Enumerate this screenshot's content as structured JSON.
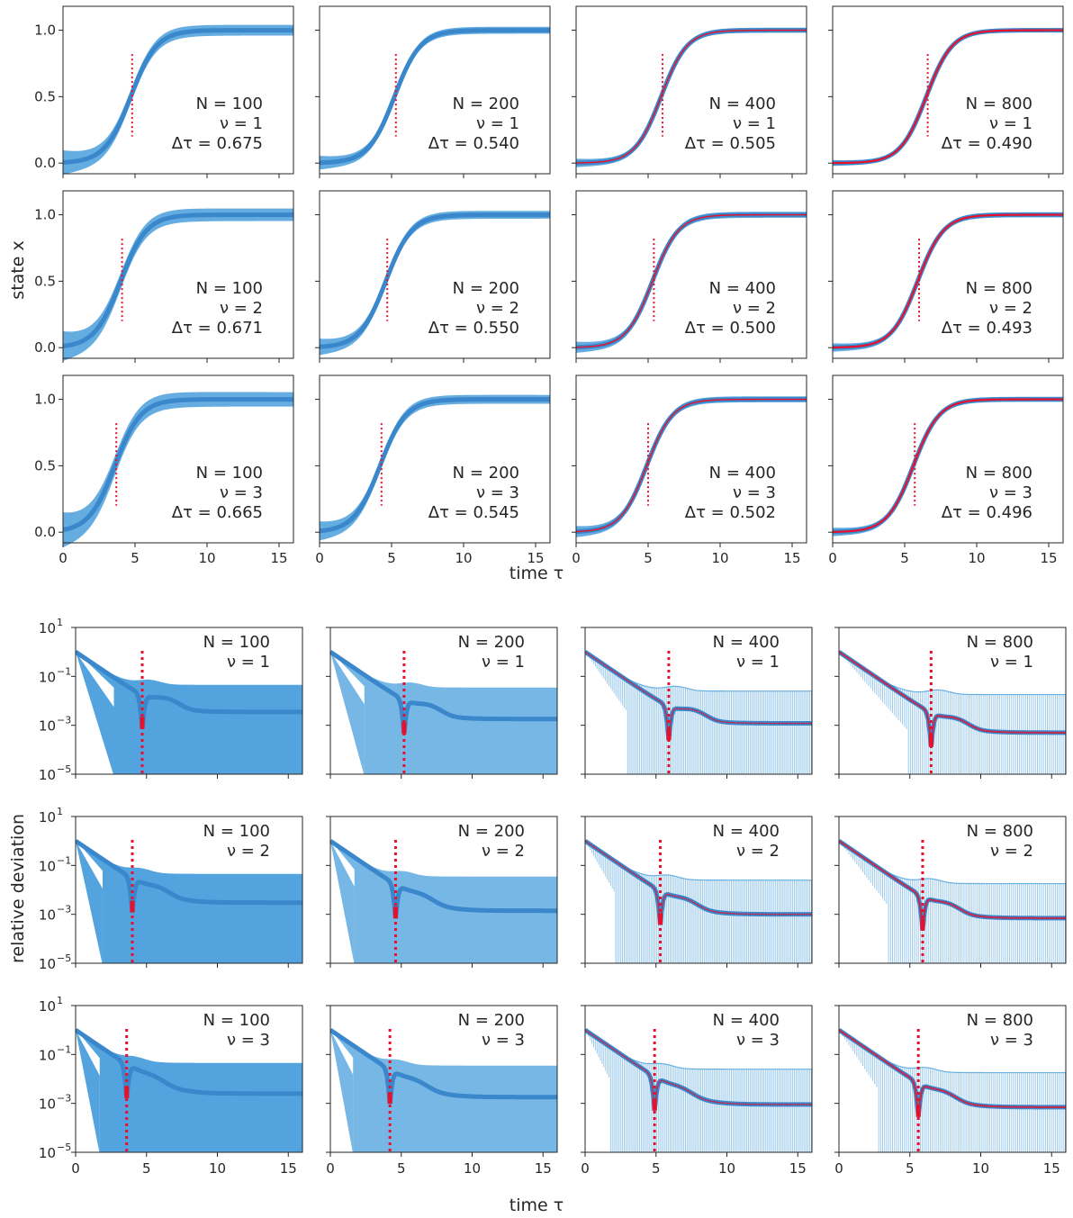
{
  "figure": {
    "top": {
      "xlabel": "time    τ",
      "ylabel": "state    x"
    },
    "bottom": {
      "xlabel": "time    τ",
      "ylabel": "relative deviation"
    }
  },
  "chart_data": [
    {
      "type": "line",
      "panel_group": "state",
      "description_axes": {
        "xlim": [
          0,
          16
        ],
        "ylim": [
          -0.08,
          1.18
        ],
        "xticks": [
          0,
          5,
          10,
          15
        ],
        "yticks": [
          0.0,
          0.5,
          1.0
        ],
        "xtick_labels": [
          "0",
          "5",
          "10",
          "15"
        ],
        "ytick_labels": [
          "0.0",
          "0.5",
          "1.0"
        ],
        "grid": false
      },
      "curve": {
        "model": "logistic",
        "x0": 0.0
      },
      "rows": [
        {
          "nu": "1",
          "nu_label": "ν = 1",
          "panels": [
            {
              "N": "100",
              "N_label": "N = 100",
              "dtau_label": "Δτ = 0.675",
              "midpoint": 4.7,
              "band": 0.08
            },
            {
              "N": "200",
              "N_label": "N = 200",
              "dtau_label": "Δτ = 0.540",
              "midpoint": 5.2,
              "band": 0.04
            },
            {
              "N": "400",
              "N_label": "N = 400",
              "dtau_label": "Δτ = 0.505",
              "midpoint": 5.9,
              "band": 0.02
            },
            {
              "N": "800",
              "N_label": "N = 800",
              "dtau_label": "Δτ = 0.490",
              "midpoint": 6.5,
              "band": 0.01
            }
          ]
        },
        {
          "nu": "2",
          "nu_label": "ν = 2",
          "panels": [
            {
              "N": "100",
              "N_label": "N = 100",
              "dtau_label": "Δτ = 0.671",
              "midpoint": 4.0,
              "band": 0.1
            },
            {
              "N": "200",
              "N_label": "N = 200",
              "dtau_label": "Δτ = 0.550",
              "midpoint": 4.6,
              "band": 0.05
            },
            {
              "N": "400",
              "N_label": "N = 400",
              "dtau_label": "Δτ = 0.500",
              "midpoint": 5.3,
              "band": 0.03
            },
            {
              "N": "800",
              "N_label": "N = 800",
              "dtau_label": "Δτ = 0.493",
              "midpoint": 5.9,
              "band": 0.02
            }
          ]
        },
        {
          "nu": "3",
          "nu_label": "ν = 3",
          "panels": [
            {
              "N": "100",
              "N_label": "N = 100",
              "dtau_label": "Δτ = 0.665",
              "midpoint": 3.6,
              "band": 0.12
            },
            {
              "N": "200",
              "N_label": "N = 200",
              "dtau_label": "Δτ = 0.545",
              "midpoint": 4.2,
              "band": 0.06
            },
            {
              "N": "400",
              "N_label": "N = 400",
              "dtau_label": "Δτ = 0.502",
              "midpoint": 4.9,
              "band": 0.03
            },
            {
              "N": "800",
              "N_label": "N = 800",
              "dtau_label": "Δτ = 0.496",
              "midpoint": 5.6,
              "band": 0.02
            }
          ]
        }
      ],
      "series_colors": {
        "mean": "#3a87cc",
        "band": "#4a9fdc",
        "reference": "#e8102a",
        "midpoint_line": "#e8102a"
      }
    },
    {
      "type": "line",
      "panel_group": "relative_deviation",
      "description_axes": {
        "xlim": [
          0,
          16
        ],
        "yscale": "log",
        "ylim": [
          1e-05,
          10
        ],
        "xticks": [
          0,
          5,
          10,
          15
        ],
        "yticks": [
          1e-05,
          0.001,
          0.1,
          10
        ],
        "xtick_labels": [
          "0",
          "5",
          "10",
          "15"
        ],
        "ytick_labels": [
          {
            "base": "10",
            "exp": "−5"
          },
          {
            "base": "10",
            "exp": "−3"
          },
          {
            "base": "10",
            "exp": "−1"
          },
          {
            "base": "10",
            "exp": "1"
          }
        ],
        "grid": false
      },
      "rows": [
        {
          "nu": "1",
          "nu_label": "ν = 1",
          "panels": [
            {
              "N": "100",
              "N_label": "N = 100",
              "dip": 4.7,
              "plateau": 0.0035,
              "upper": 0.045,
              "cutoff": 2.7
            },
            {
              "N": "200",
              "N_label": "N = 200",
              "dip": 5.2,
              "plateau": 0.0018,
              "upper": 0.035,
              "cutoff": 2.4
            },
            {
              "N": "400",
              "N_label": "N = 400",
              "dip": 5.9,
              "plateau": 0.0012,
              "upper": 0.025,
              "cutoff": 3.0
            },
            {
              "N": "800",
              "N_label": "N = 800",
              "dip": 6.5,
              "plateau": 0.0005,
              "upper": 0.018,
              "cutoff": 4.8
            }
          ]
        },
        {
          "nu": "2",
          "nu_label": "ν = 2",
          "panels": [
            {
              "N": "100",
              "N_label": "N = 100",
              "dip": 4.0,
              "plateau": 0.003,
              "upper": 0.045,
              "cutoff": 1.9
            },
            {
              "N": "200",
              "N_label": "N = 200",
              "dip": 4.6,
              "plateau": 0.0014,
              "upper": 0.035,
              "cutoff": 1.7
            },
            {
              "N": "400",
              "N_label": "N = 400",
              "dip": 5.3,
              "plateau": 0.001,
              "upper": 0.025,
              "cutoff": 2.1
            },
            {
              "N": "800",
              "N_label": "N = 800",
              "dip": 5.9,
              "plateau": 0.0007,
              "upper": 0.018,
              "cutoff": 3.5
            }
          ]
        },
        {
          "nu": "3",
          "nu_label": "ν = 3",
          "panels": [
            {
              "N": "100",
              "N_label": "N = 100",
              "dip": 3.6,
              "plateau": 0.0025,
              "upper": 0.045,
              "cutoff": 1.7
            },
            {
              "N": "200",
              "N_label": "N = 200",
              "dip": 4.2,
              "plateau": 0.0018,
              "upper": 0.035,
              "cutoff": 1.6
            },
            {
              "N": "400",
              "N_label": "N = 400",
              "dip": 4.9,
              "plateau": 0.0009,
              "upper": 0.025,
              "cutoff": 1.7
            },
            {
              "N": "800",
              "N_label": "N = 800",
              "dip": 5.6,
              "plateau": 0.0007,
              "upper": 0.018,
              "cutoff": 2.7
            }
          ]
        }
      ],
      "start_value": 1.0,
      "series_colors": {
        "mean": "#3a87cc",
        "band": "#4a9fdc",
        "reference": "#e8102a",
        "midpoint_line": "#e8102a"
      }
    }
  ]
}
